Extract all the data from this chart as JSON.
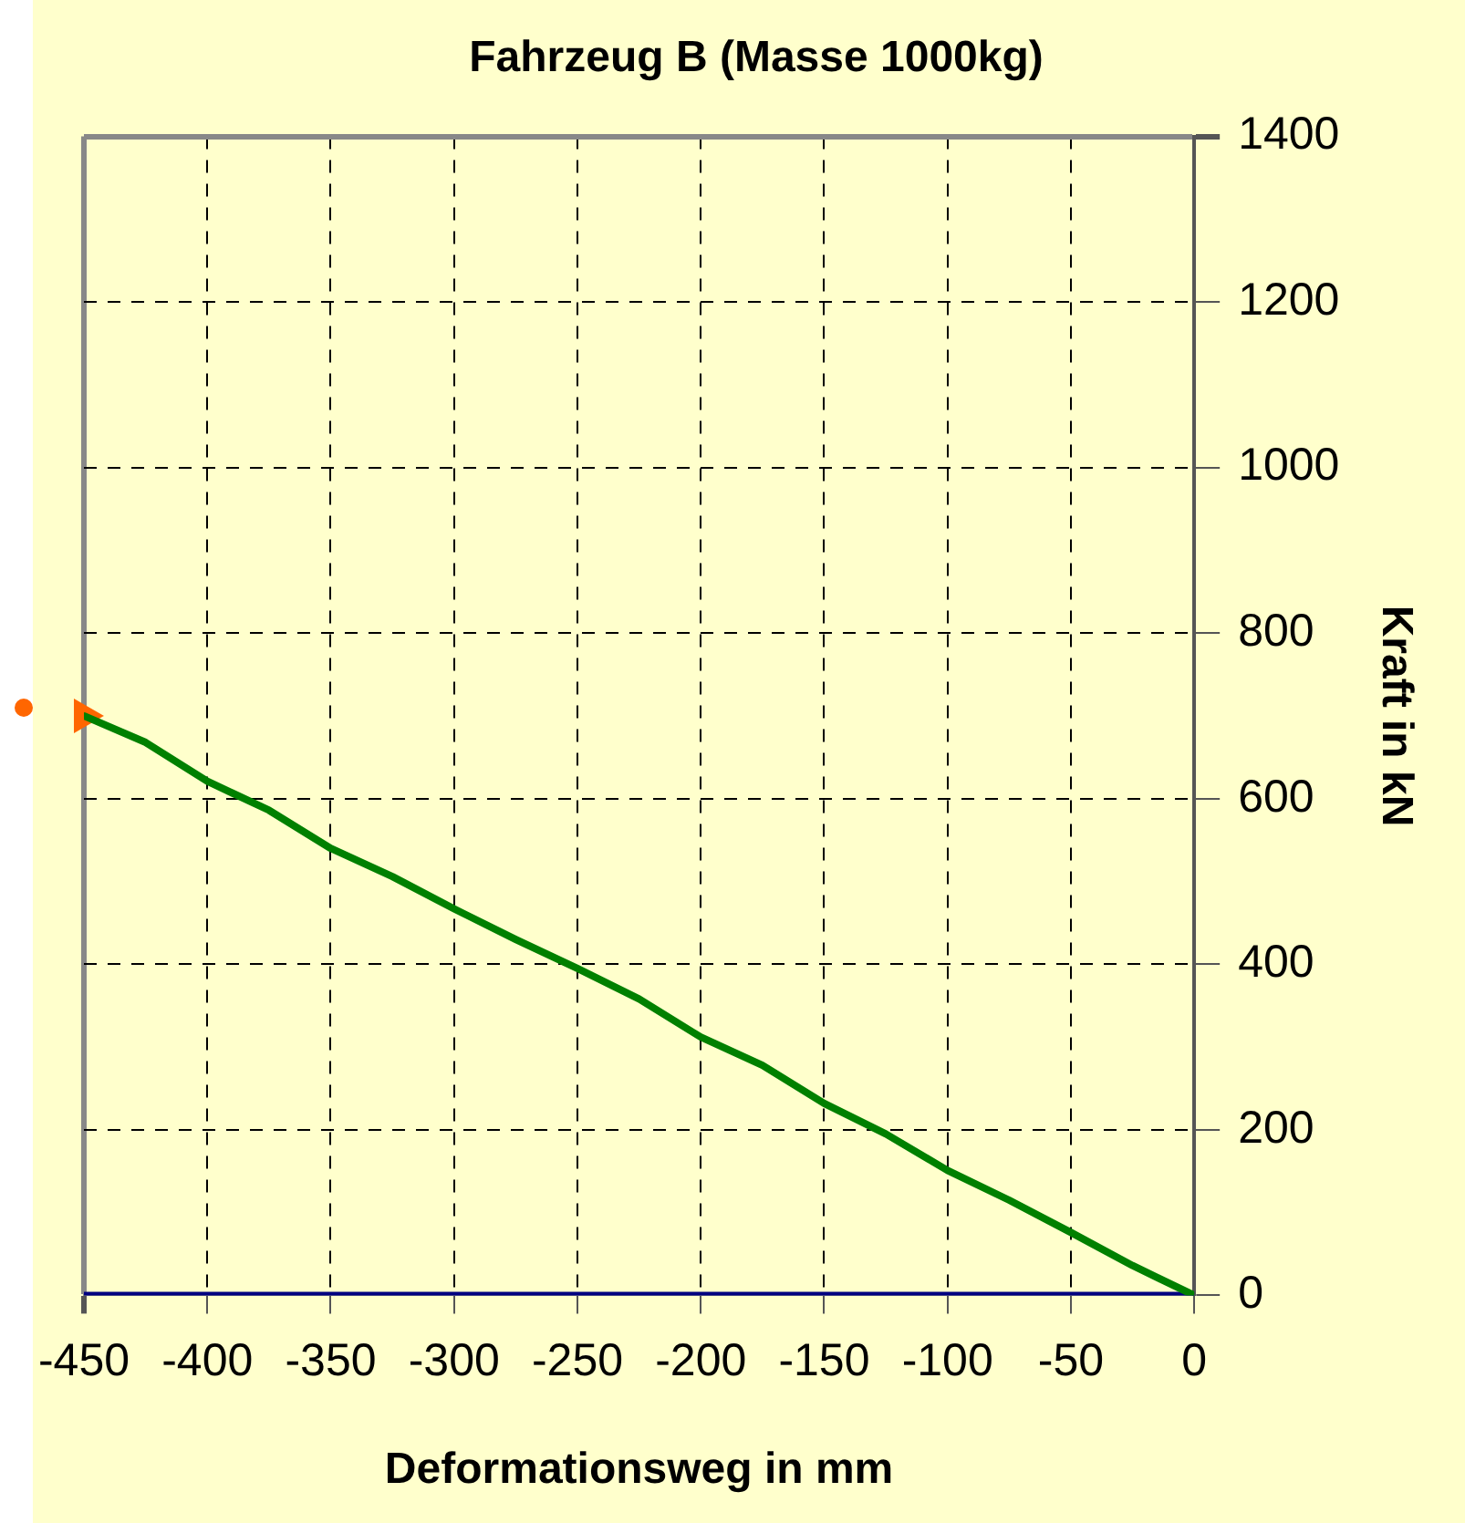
{
  "chart_data": {
    "type": "line",
    "title": "Fahrzeug B (Masse 1000kg)",
    "xlabel": "Deformationsweg in mm",
    "ylabel": "Kraft in kN",
    "x": [
      -450,
      -425,
      -400,
      -375,
      -350,
      -325,
      -300,
      -275,
      -250,
      -225,
      -200,
      -175,
      -150,
      -125,
      -100,
      -75,
      -50,
      -25,
      0
    ],
    "series": [
      {
        "color": "#008000",
        "values": [
          700,
          668,
          621,
          586,
          540,
          506,
          467,
          430,
          395,
          358,
          312,
          278,
          232,
          195,
          151,
          115,
          76,
          36,
          0
        ]
      },
      {
        "color": "#000080",
        "values": [
          0,
          0,
          0,
          0,
          0,
          0,
          0,
          0,
          0,
          0,
          0,
          0,
          0,
          0,
          0,
          0,
          0,
          0,
          0
        ]
      },
      {
        "type": "scatter",
        "color": "#ff6600",
        "marker": "triangle",
        "x": [
          -450
        ],
        "values": [
          700
        ]
      }
    ],
    "xlim": [
      -450,
      0
    ],
    "xticks": [
      -450,
      -400,
      -350,
      -300,
      -250,
      -200,
      -150,
      -100,
      -50,
      0
    ],
    "ylim": [
      0,
      1400
    ],
    "yticks": [
      0,
      200,
      400,
      600,
      800,
      1000,
      1200,
      1400
    ],
    "grid": true,
    "legend": false,
    "marker": "none",
    "line_style": "solid"
  }
}
